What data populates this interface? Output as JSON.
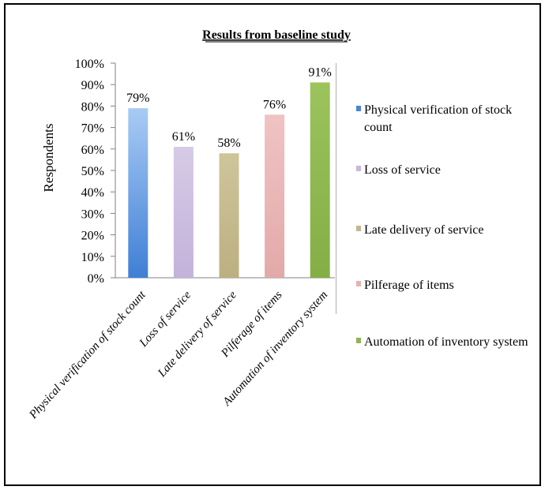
{
  "chart_data": {
    "type": "bar",
    "title": "Results from baseline study",
    "ylabel": "Respondents",
    "xlabel": "",
    "categories": [
      "Physical verification of stock count",
      "Loss of service",
      "Late delivery of service",
      "Pilferage of items",
      "Automation of inventory system"
    ],
    "values": [
      79,
      61,
      58,
      76,
      91
    ],
    "value_labels": [
      "79%",
      "61%",
      "58%",
      "76%",
      "91%"
    ],
    "ylim": [
      0,
      100
    ],
    "yticks": [
      "0%",
      "10%",
      "20%",
      "30%",
      "40%",
      "50%",
      "60%",
      "70%",
      "80%",
      "90%",
      "100%"
    ],
    "grid": false,
    "legend_position": "right",
    "legend": [
      {
        "label_line1": "Physical verification of stock",
        "label_line2": "count",
        "color": "#4a86d8"
      },
      {
        "label_line1": "Loss of service",
        "label_line2": "",
        "color": "#c8b8dc"
      },
      {
        "label_line1": "Late delivery of service",
        "label_line2": "",
        "color": "#c2b78c"
      },
      {
        "label_line1": "Pilferage of items",
        "label_line2": "",
        "color": "#e7b3b3"
      },
      {
        "label_line1": "Automation of inventory system",
        "label_line2": "",
        "color": "#8fb552"
      }
    ],
    "bar_colors": [
      {
        "top": "#a9cbf5",
        "bottom": "#3f7fd4"
      },
      {
        "top": "#d6cbe6",
        "bottom": "#c3b2da"
      },
      {
        "top": "#cfc59b",
        "bottom": "#bcb081"
      },
      {
        "top": "#f0c3c3",
        "bottom": "#e3a9a9"
      },
      {
        "top": "#9cc35c",
        "bottom": "#84ae45"
      }
    ]
  }
}
